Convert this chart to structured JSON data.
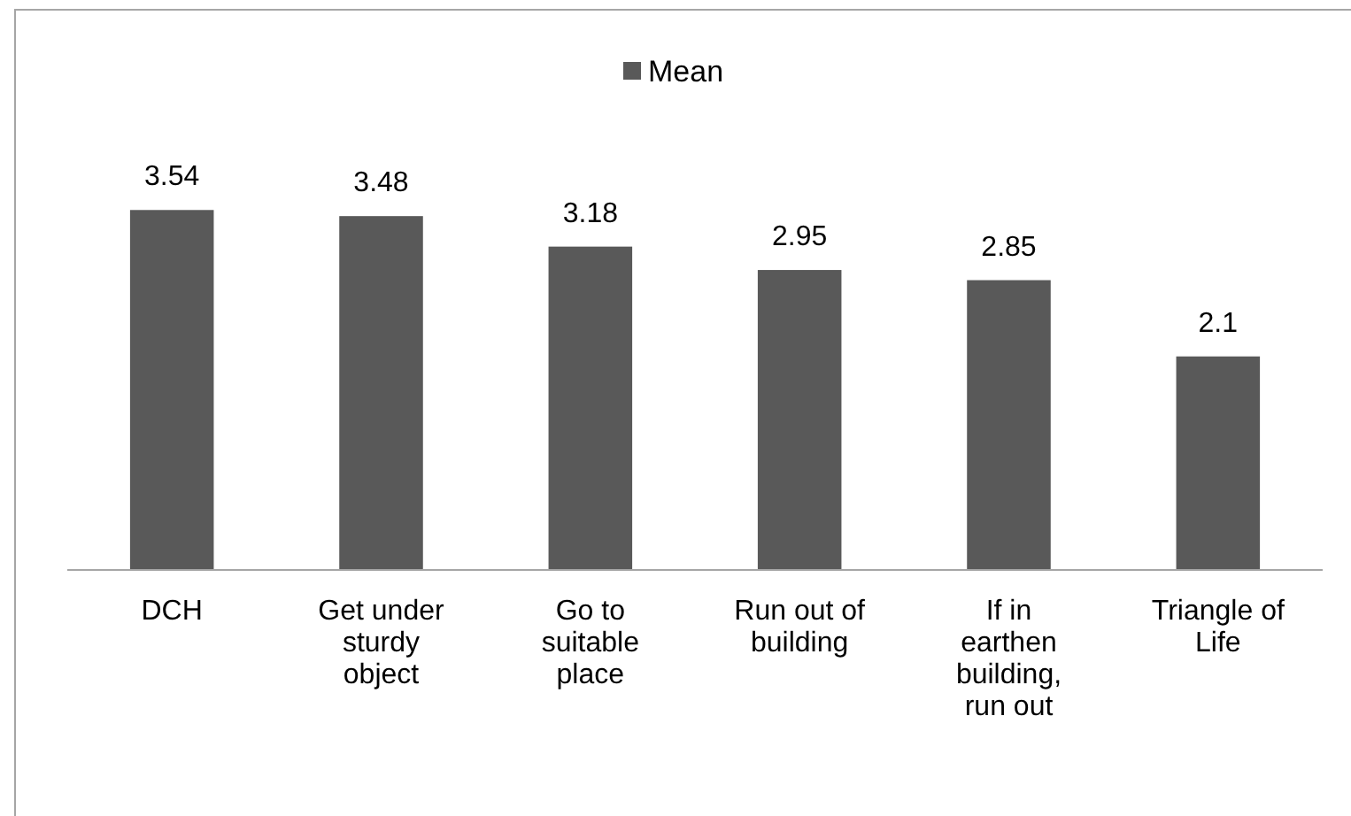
{
  "chart_data": {
    "type": "bar",
    "categories": [
      "DCH",
      "Get under sturdy object",
      "Go to suitable place",
      "Run out of building",
      "If in earthen building, run out",
      "Triangle of Life"
    ],
    "series": [
      {
        "name": "Mean",
        "color": "#595959",
        "values": [
          3.54,
          3.48,
          3.18,
          2.95,
          2.85,
          2.1
        ]
      }
    ],
    "data_labels": true,
    "legend": "top"
  }
}
